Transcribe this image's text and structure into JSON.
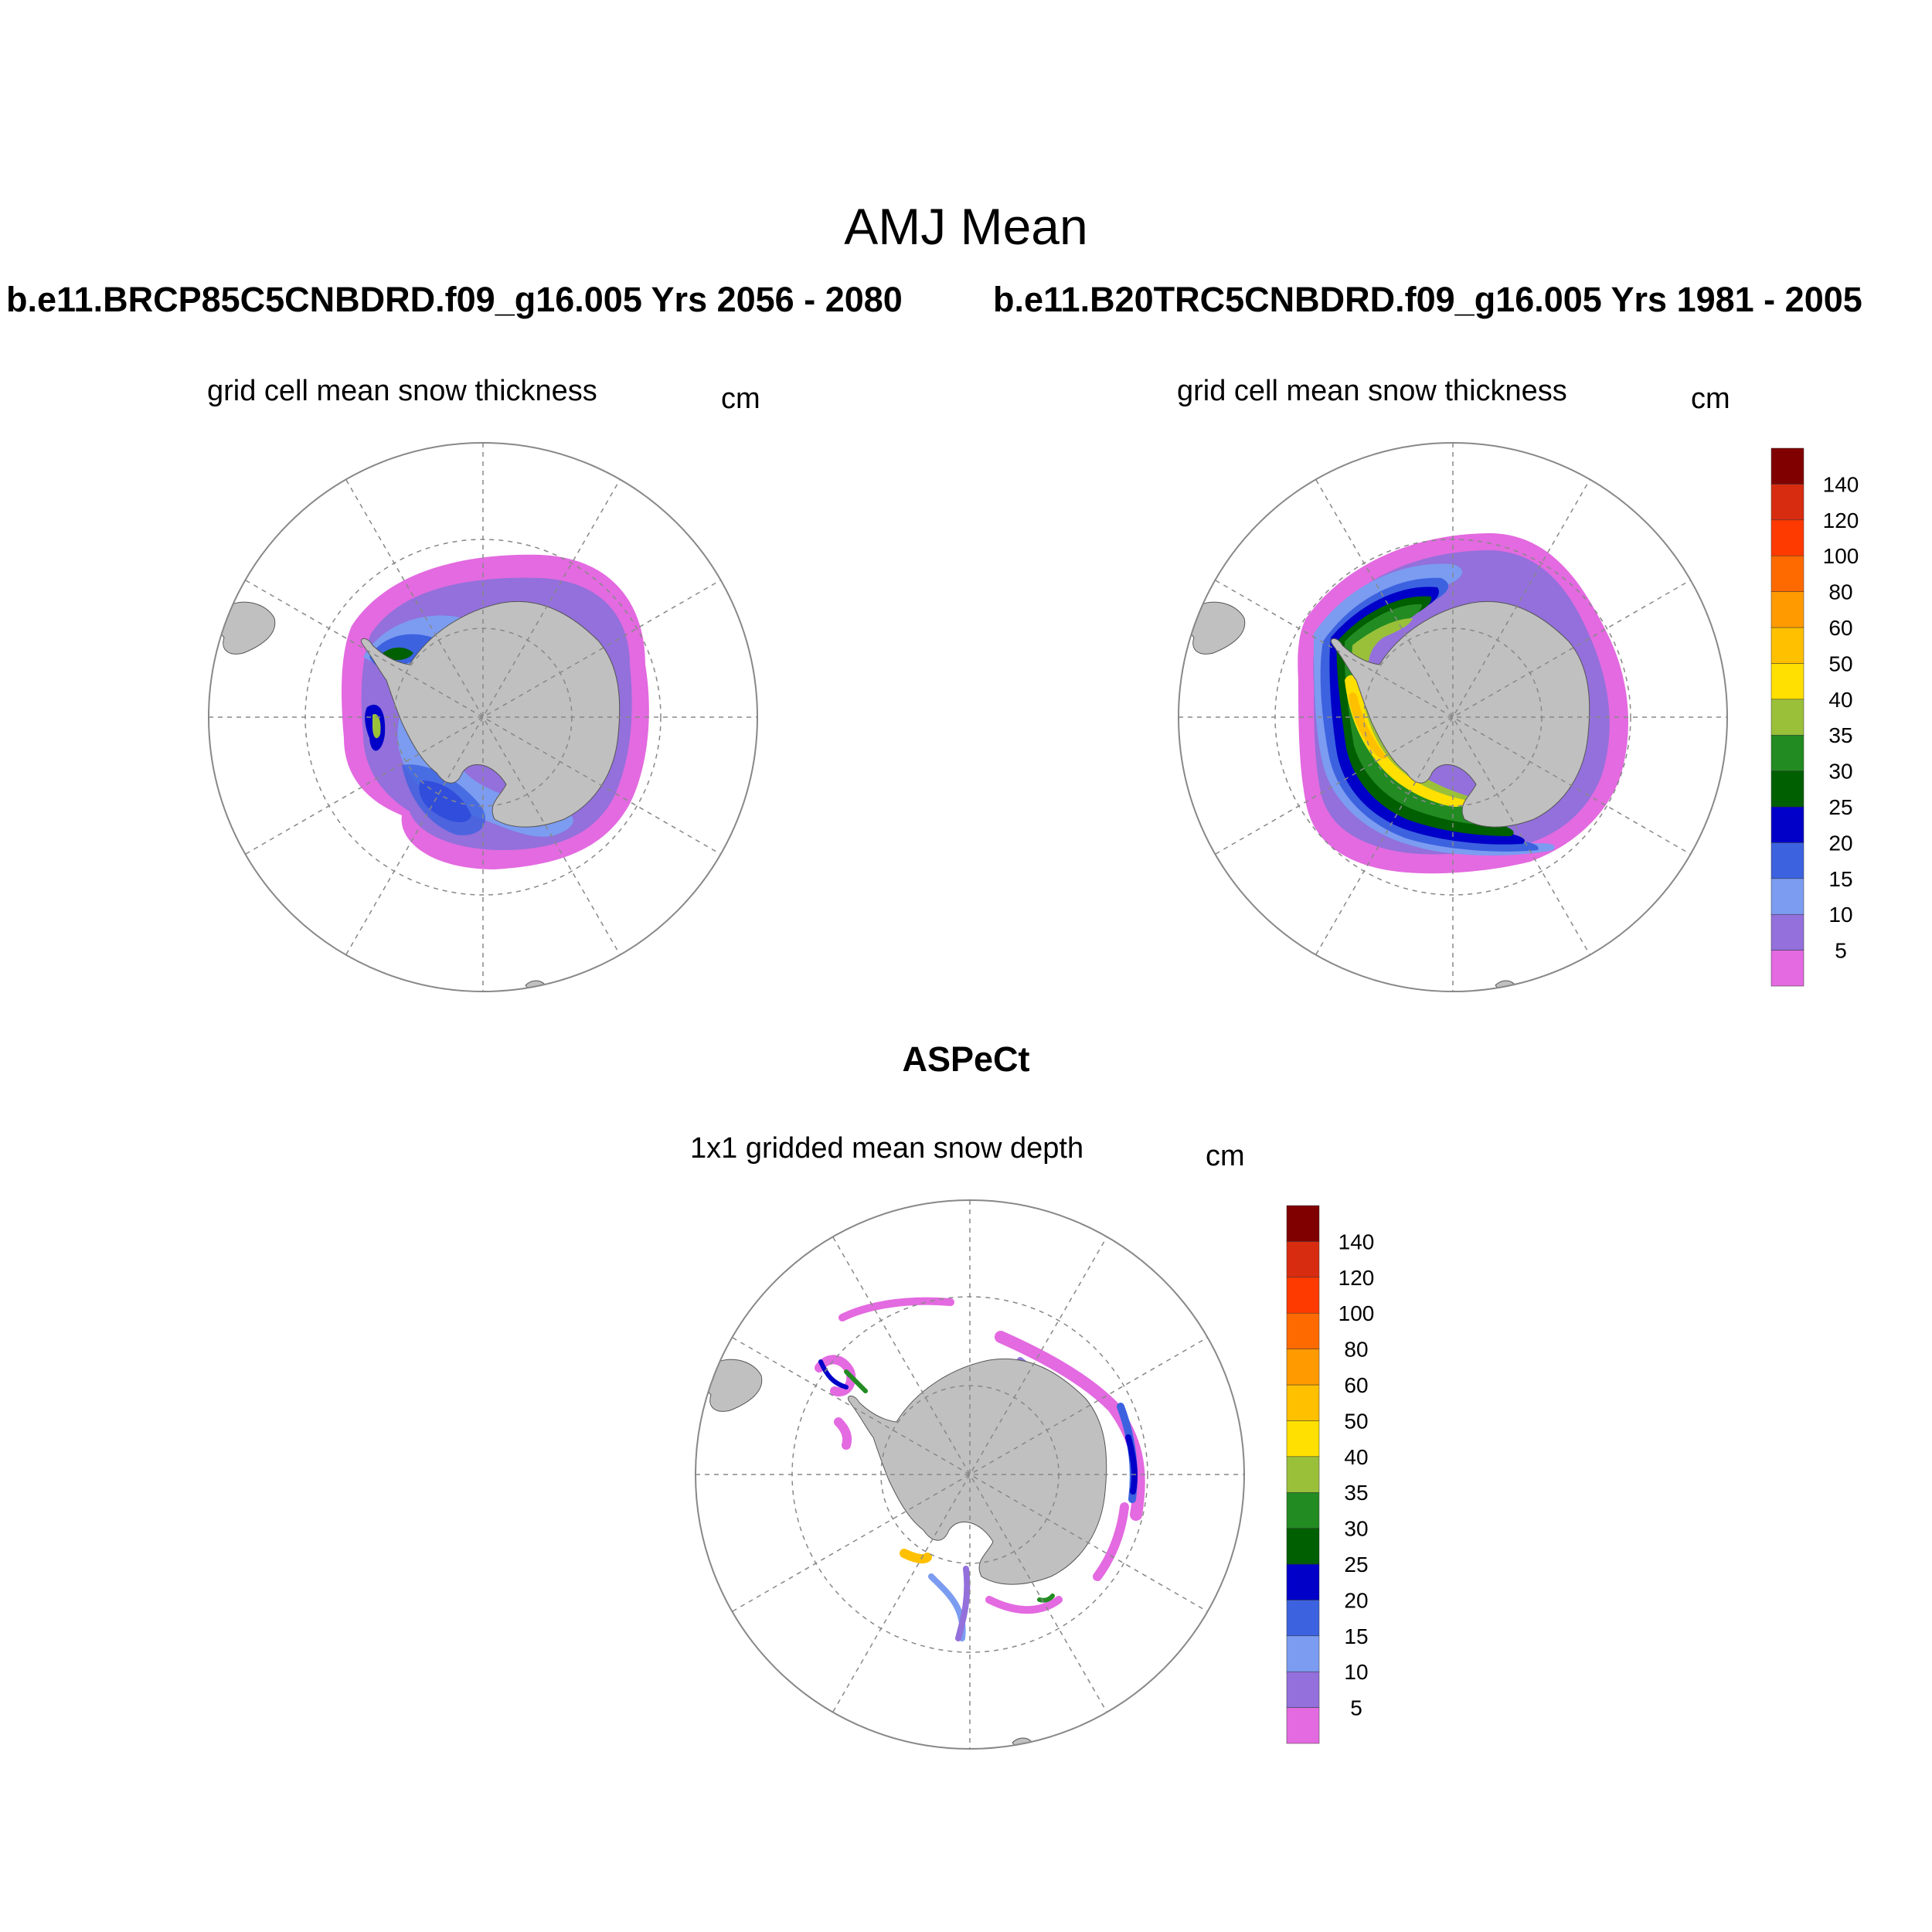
{
  "figure": {
    "title": "AMJ Mean",
    "run_left": "b.e11.BRCP85C5CNBDRD.f09_g16.005  Yrs 2056 - 2080",
    "run_right": "b.e11.B20TRC5CNBDRD.f09_g16.005  Yrs 1981 - 2005",
    "obs_title": "ASPeCt"
  },
  "panels": [
    {
      "id": "left",
      "subtitle": "grid cell mean snow thickness",
      "units": "cm"
    },
    {
      "id": "right",
      "subtitle": "grid cell mean snow thickness",
      "units": "cm"
    },
    {
      "id": "obs",
      "subtitle": "1x1 gridded mean snow depth",
      "units": "cm"
    }
  ],
  "colorbar": {
    "labels": [
      "5",
      "10",
      "15",
      "20",
      "25",
      "30",
      "35",
      "40",
      "50",
      "60",
      "80",
      "100",
      "120",
      "140"
    ],
    "colors": [
      "#e36ae0",
      "#9370db",
      "#7b9cf0",
      "#3c62e0",
      "#0000c8",
      "#005f00",
      "#228b22",
      "#9ac03a",
      "#ffe000",
      "#ffc000",
      "#ff9a00",
      "#ff6a00",
      "#ff3a00",
      "#d82c10",
      "#800000"
    ]
  },
  "map_colors": {
    "land": "#c0c0c0",
    "grid": "#888888"
  }
}
